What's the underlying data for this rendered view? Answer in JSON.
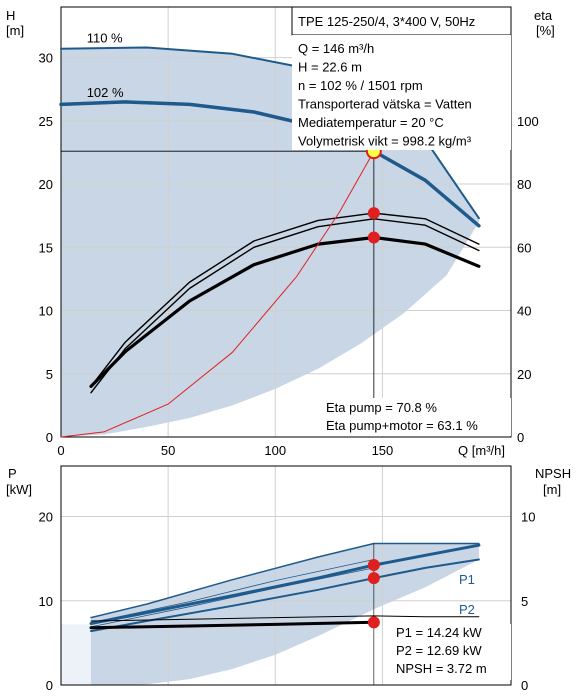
{
  "chart_data": [
    {
      "type": "line",
      "title": "TPE 125-250/4, 3*400 V, 50Hz",
      "info_lines": [
        "Q = 146 m³/h",
        "H = 22.6 m",
        "n = 102 % / 1501 rpm",
        "Transporterad vätska = Vatten",
        "Mediatemperatur = 20 °C",
        "Volymetrisk vikt = 998.2 kg/m³"
      ],
      "eta_lines": [
        "Eta pump = 70.8 %",
        "Eta pump+motor = 63.1 %"
      ],
      "ylabel_left": [
        "H",
        "[m]"
      ],
      "ylabel_right": [
        "eta",
        "[%]"
      ],
      "xlabel": "Q [m³/h]",
      "xlim": [
        0,
        210
      ],
      "ylim_left": [
        0,
        34
      ],
      "ylim_right": [
        0,
        136
      ],
      "x_ticks": [
        "0",
        "50",
        "100",
        "150"
      ],
      "y_ticks_left": [
        "0",
        "5",
        "10",
        "15",
        "20",
        "25",
        "30"
      ],
      "y_ticks_right": [
        "0",
        "20",
        "40",
        "60",
        "80",
        "100"
      ],
      "grid": true,
      "series": [
        {
          "name": "110 %",
          "axis": "H",
          "color": "#1f5a8c",
          "width": 2,
          "x": [
            0,
            40,
            80,
            110,
            140,
            170,
            195
          ],
          "y": [
            30.7,
            30.8,
            30.3,
            29.3,
            27.3,
            23.5,
            17.3
          ]
        },
        {
          "name": "102 %",
          "axis": "H",
          "color": "#1f5a8c",
          "width": 3.5,
          "x": [
            0,
            30,
            60,
            90,
            120,
            146,
            170,
            195
          ],
          "y": [
            26.3,
            26.5,
            26.3,
            25.7,
            24.5,
            22.6,
            20.3,
            16.7
          ]
        },
        {
          "axis": "eta",
          "color": "#000000",
          "width": 1.4,
          "x": [
            14,
            30,
            60,
            90,
            120,
            146,
            170,
            195
          ],
          "y": [
            16,
            30,
            49,
            62,
            68.5,
            70.8,
            69,
            61
          ]
        },
        {
          "axis": "eta",
          "color": "#000000",
          "width": 1.4,
          "x": [
            14,
            30,
            60,
            90,
            120,
            146,
            170,
            195
          ],
          "y": [
            14,
            28,
            47,
            60,
            66.5,
            69,
            67,
            59
          ]
        },
        {
          "axis": "eta",
          "color": "#000000",
          "width": 3.2,
          "x": [
            14,
            30,
            60,
            90,
            120,
            146,
            170,
            195
          ],
          "y": [
            16,
            27,
            43,
            54.5,
            61,
            63.1,
            61,
            54
          ]
        },
        {
          "axis": "H",
          "color": "#e02020",
          "width": 1,
          "x": [
            0,
            20,
            50,
            80,
            110,
            130,
            146,
            150
          ],
          "y": [
            0,
            0.4,
            2.6,
            6.7,
            12.7,
            17.8,
            22.6,
            23.8
          ]
        }
      ],
      "op_points": [
        {
          "x": 146,
          "y": 22.6,
          "axis": "H",
          "style": "yellow"
        },
        {
          "x": 146,
          "y": 70.8,
          "axis": "eta",
          "style": "red"
        },
        {
          "x": 146,
          "y": 63.1,
          "axis": "eta",
          "style": "red"
        }
      ],
      "op_marker_x": 146,
      "op_marker_y": 22.6,
      "envelope_top_x": [
        0,
        40,
        80,
        110,
        140,
        170,
        195
      ],
      "envelope_top_y": [
        30.7,
        30.8,
        30.3,
        29.3,
        27.3,
        23.5,
        17.3
      ],
      "envelope_bottom_x": [
        195,
        180,
        160,
        140,
        120,
        100,
        80,
        60,
        40,
        30,
        20,
        0
      ],
      "envelope_bottom_y": [
        17.0,
        12.8,
        9.8,
        7.4,
        5.4,
        3.8,
        2.5,
        1.5,
        0.8,
        0.5,
        0.2,
        0
      ],
      "colors": {
        "envelope": "#c9d6e5",
        "curve": "#1f5a8c",
        "point": "#e02020",
        "point_highlight": "#ffff44"
      }
    },
    {
      "type": "line",
      "ylabel_left": [
        "P",
        "[kW]"
      ],
      "ylabel_right": [
        "NPSH",
        "[m]"
      ],
      "xlim": [
        0,
        210
      ],
      "ylim_left": [
        0,
        26
      ],
      "ylim_right": [
        0,
        13
      ],
      "y_ticks_left": [
        "0",
        "10",
        "20"
      ],
      "y_ticks_right": [
        "0",
        "5",
        "10"
      ],
      "grid": true,
      "readouts": [
        "P1 = 14.24 kW",
        "P2 = 12.69 kW",
        "NPSH = 3.72 m"
      ],
      "series": [
        {
          "name": "P1",
          "axis": "P",
          "color": "#1f5a8c",
          "width": 3,
          "x": [
            14,
            40,
            80,
            120,
            146,
            170,
            195
          ],
          "y": [
            7.3,
            8.6,
            10.6,
            12.7,
            14.24,
            15.4,
            16.6
          ]
        },
        {
          "name": "P2",
          "axis": "P",
          "color": "#1f5a8c",
          "width": 2,
          "x": [
            14,
            40,
            80,
            120,
            146,
            170,
            195
          ],
          "y": [
            6.4,
            7.6,
            9.4,
            11.3,
            12.69,
            13.9,
            14.9
          ]
        },
        {
          "axis": "P",
          "color": "#1f5a8c",
          "width": 1.5,
          "x": [
            14,
            40,
            80,
            120,
            146,
            170,
            195
          ],
          "y": [
            8.0,
            9.6,
            12.5,
            15.2,
            16.8,
            16.8,
            16.8
          ]
        },
        {
          "axis": "P",
          "color": "#1f5a8c",
          "width": 0.8,
          "x": [
            14,
            60,
            100,
            146
          ],
          "y": [
            7.4,
            9.9,
            12.4,
            14.9
          ]
        },
        {
          "axis": "P",
          "color": "#1f5a8c",
          "width": 0.8,
          "x": [
            14,
            60,
            100,
            146
          ],
          "y": [
            6.9,
            9.3,
            11.5,
            13.9
          ]
        },
        {
          "axis": "NPSH",
          "color": "#000000",
          "width": 3,
          "x": [
            14,
            60,
            100,
            146
          ],
          "y": [
            3.4,
            3.5,
            3.6,
            3.72
          ]
        },
        {
          "axis": "NPSH",
          "color": "#000000",
          "width": 1,
          "x": [
            14,
            60,
            100,
            146,
            170,
            195
          ],
          "y": [
            3.8,
            3.9,
            4.0,
            4.1,
            4.05,
            4.05
          ]
        }
      ],
      "op_points": [
        {
          "x": 146,
          "y": 14.24,
          "axis": "P"
        },
        {
          "x": 146,
          "y": 12.69,
          "axis": "P"
        },
        {
          "x": 146,
          "y": 3.72,
          "axis": "NPSH"
        }
      ],
      "op_marker_x": 146,
      "envelope_top_x": [
        14,
        40,
        80,
        120,
        146,
        170,
        195
      ],
      "envelope_top_y": [
        8.0,
        9.6,
        12.5,
        15.2,
        16.8,
        16.8,
        16.8
      ],
      "envelope_bottom_x": [
        195,
        170,
        146,
        120,
        100,
        80,
        60,
        40,
        30,
        14
      ],
      "envelope_bottom_y": [
        14.9,
        11.6,
        9.0,
        5.8,
        3.6,
        1.9,
        0.7,
        0.1,
        0,
        0
      ],
      "colors": {
        "envelope": "#c9d6e5",
        "curve": "#1f5a8c",
        "point": "#e02020"
      }
    }
  ]
}
